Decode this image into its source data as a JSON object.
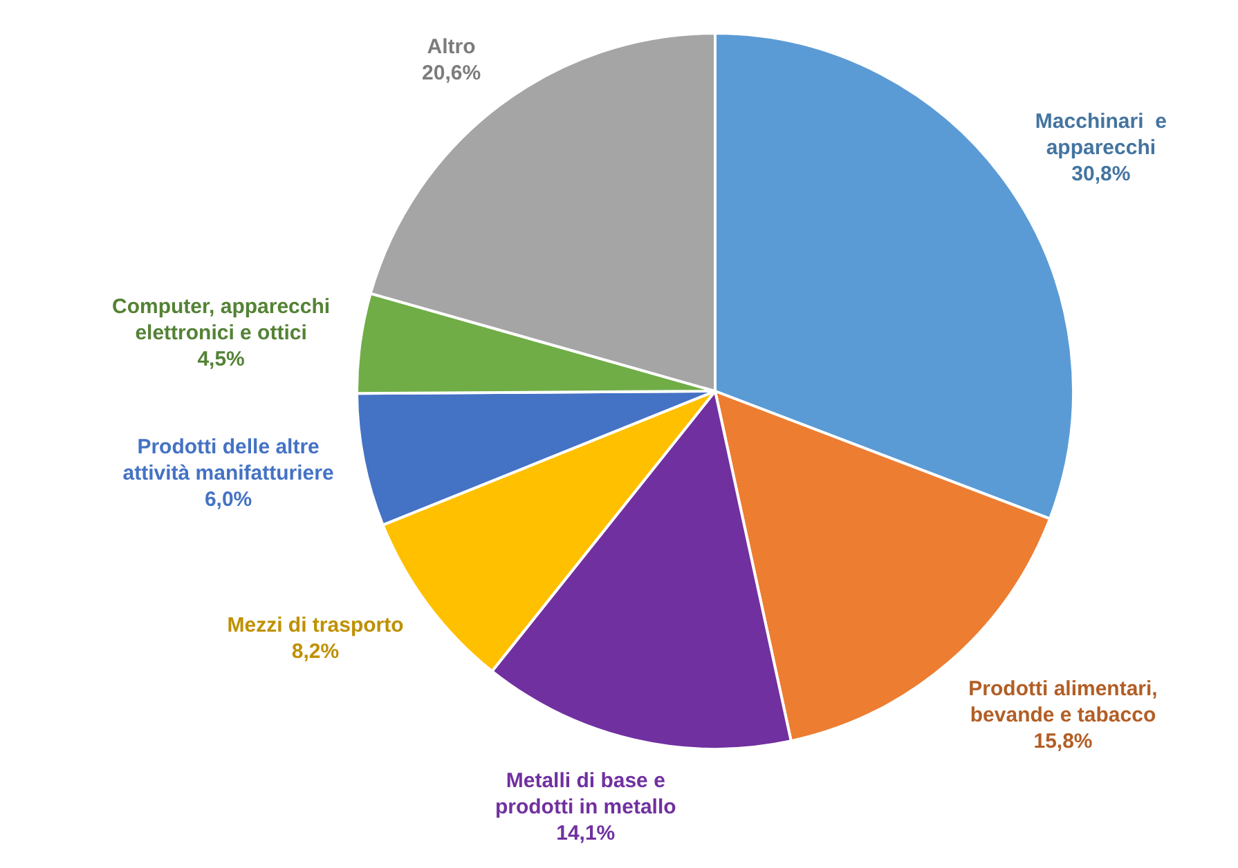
{
  "chart_data": {
    "type": "pie",
    "categories": [
      "Macchinari  e apparecchi",
      "Prodotti alimentari, bevande e tabacco",
      "Metalli di base e prodotti in metallo",
      "Mezzi di trasporto",
      "Prodotti delle altre attività manifatturiere",
      "Computer, apparecchi elettronici e ottici",
      "Altro"
    ],
    "values": [
      30.8,
      15.8,
      14.1,
      8.2,
      6.0,
      4.5,
      20.6
    ],
    "value_labels": [
      "30,8%",
      "15,8%",
      "14,1%",
      "8,2%",
      "6,0%",
      "4,5%",
      "20,6%"
    ],
    "colors": [
      "#5b9bd5",
      "#ed7d31",
      "#7030a0",
      "#ffc000",
      "#4472c4",
      "#70ad47",
      "#a5a5a5"
    ],
    "legend": false
  }
}
